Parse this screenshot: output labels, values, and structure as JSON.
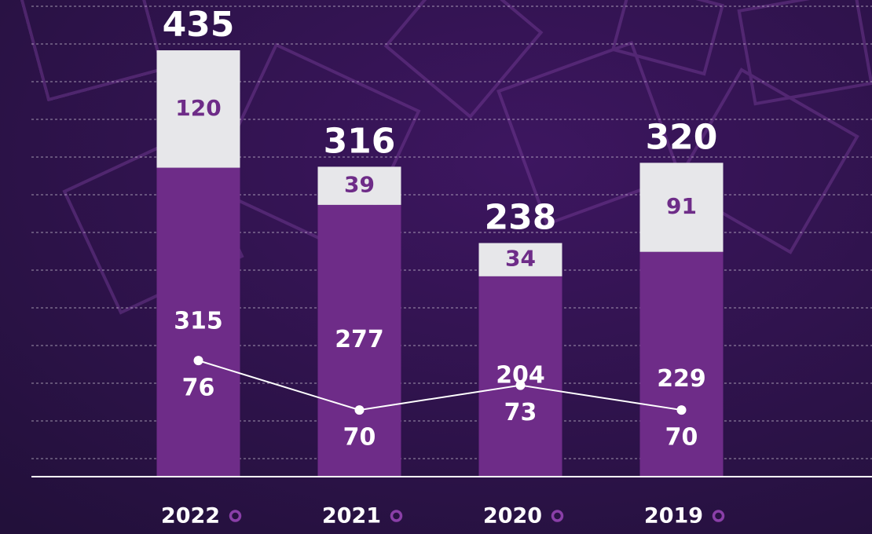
{
  "chart_data": {
    "type": "bar",
    "stacked": true,
    "categories": [
      "2022",
      "2021",
      "2020",
      "2019"
    ],
    "series": [
      {
        "name": null,
        "color": "#6e2c88",
        "label_color": "#ffffff",
        "values": [
          315,
          277,
          204,
          229
        ]
      },
      {
        "name": null,
        "color": "#e7e7ea",
        "label_color": "#6e2c88",
        "values": [
          120,
          39,
          34,
          91
        ]
      },
      {
        "name": null,
        "type": "line",
        "axis": "y2",
        "color": "#ffffff",
        "values": [
          76,
          70,
          73,
          70
        ]
      }
    ],
    "totals": [
      435,
      316,
      238,
      320
    ],
    "ylim": [
      0,
      480
    ],
    "y2lim": [
      62,
      119
    ]
  }
}
